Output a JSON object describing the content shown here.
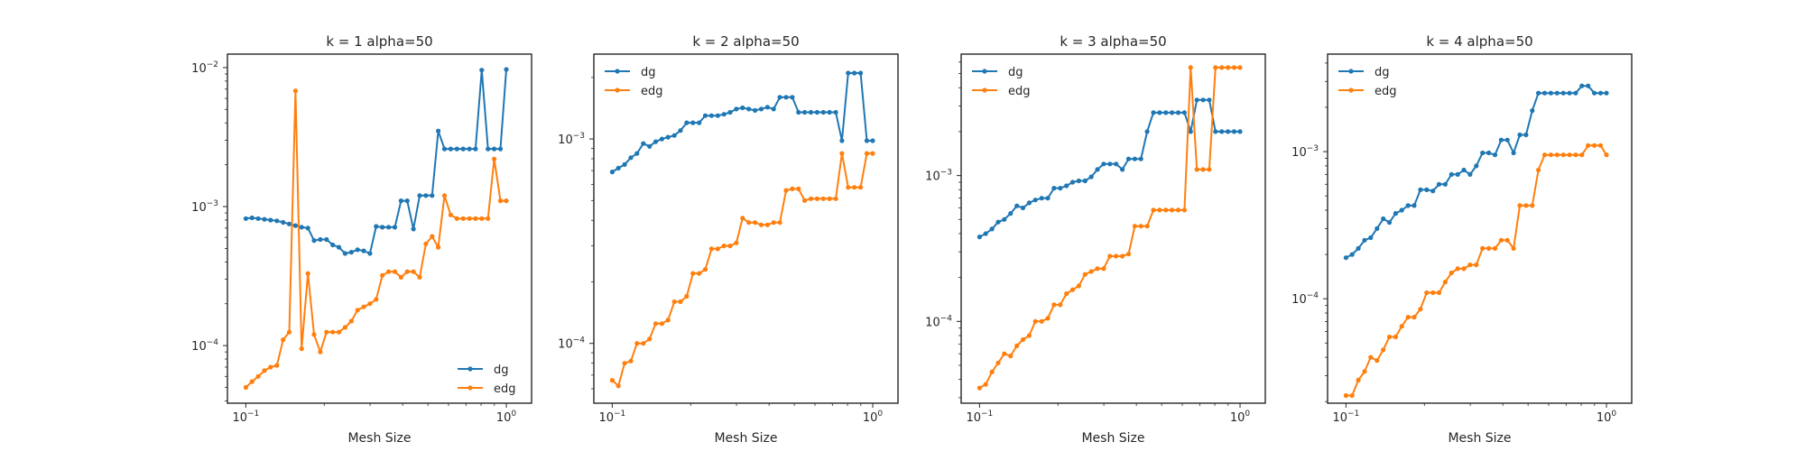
{
  "colors": {
    "dg": "#1f77b4",
    "edg": "#ff7f0e",
    "axes": "#262626",
    "background": "#ffffff"
  },
  "chart_data": [
    {
      "type": "line",
      "title": "k = 1 alpha=50",
      "xlabel": "Mesh Size",
      "xscale": "log",
      "yscale": "log",
      "xlim": [
        0.085,
        1.25
      ],
      "ylim": [
        3.85e-05,
        0.0125
      ],
      "xticks": [
        {
          "value": 0.1,
          "label": "10",
          "sup": "−1"
        },
        {
          "value": 1,
          "label": "10",
          "sup": "0"
        }
      ],
      "yticks": [
        {
          "value": 0.0001,
          "label": "10",
          "sup": "−4"
        },
        {
          "value": 0.001,
          "label": "10",
          "sup": "−3"
        },
        {
          "value": 0.01,
          "label": "10",
          "sup": "−2"
        }
      ],
      "grid": false,
      "legend": "lower-right",
      "series": [
        {
          "name": "dg",
          "color": "#1f77b4",
          "x": [
            0.1,
            0.1056,
            0.1116,
            0.1179,
            0.1245,
            0.1316,
            0.139,
            0.1468,
            0.1551,
            0.1638,
            0.1731,
            0.1828,
            0.1931,
            0.2041,
            0.2156,
            0.2277,
            0.2406,
            0.2541,
            0.2685,
            0.2836,
            0.2996,
            0.3165,
            0.3344,
            0.3533,
            0.3732,
            0.3943,
            0.4165,
            0.44,
            0.4648,
            0.4911,
            0.5188,
            0.5481,
            0.579,
            0.6117,
            0.6462,
            0.6827,
            0.7212,
            0.7619,
            0.8049,
            0.8503,
            0.8983,
            0.949,
            1.0
          ],
          "y": [
            0.00082,
            0.00083,
            0.00082,
            0.00081,
            0.0008,
            0.00079,
            0.00077,
            0.00075,
            0.00073,
            0.00071,
            0.0007,
            0.00057,
            0.00058,
            0.00058,
            0.00053,
            0.00051,
            0.00046,
            0.00047,
            0.00049,
            0.00048,
            0.00046,
            0.00072,
            0.00071,
            0.00071,
            0.00071,
            0.0011,
            0.0011,
            0.00069,
            0.0012,
            0.0012,
            0.0012,
            0.0035,
            0.0026,
            0.0026,
            0.0026,
            0.0026,
            0.0026,
            0.0026,
            0.0096,
            0.0026,
            0.0026,
            0.0026,
            0.0097
          ]
        },
        {
          "name": "edg",
          "color": "#ff7f0e",
          "x": [
            0.1,
            0.1056,
            0.1116,
            0.1179,
            0.1245,
            0.1316,
            0.139,
            0.1468,
            0.1551,
            0.1638,
            0.1731,
            0.1828,
            0.1931,
            0.2041,
            0.2156,
            0.2277,
            0.2406,
            0.2541,
            0.2685,
            0.2836,
            0.2996,
            0.3165,
            0.3344,
            0.3533,
            0.3732,
            0.3943,
            0.4165,
            0.44,
            0.4648,
            0.4911,
            0.5188,
            0.5481,
            0.579,
            0.6117,
            0.6462,
            0.6827,
            0.7212,
            0.7619,
            0.8049,
            0.8503,
            0.8983,
            0.949,
            1.0
          ],
          "y": [
            5e-05,
            5.5e-05,
            6e-05,
            6.6e-05,
            7e-05,
            7.2e-05,
            0.00011,
            0.000125,
            0.0068,
            9.5e-05,
            0.00033,
            0.00012,
            9e-05,
            0.000125,
            0.000125,
            0.000125,
            0.000135,
            0.00015,
            0.00018,
            0.00019,
            0.0002,
            0.000215,
            0.00032,
            0.00034,
            0.00034,
            0.00031,
            0.00034,
            0.00034,
            0.00031,
            0.00054,
            0.00061,
            0.00051,
            0.0012,
            0.00087,
            0.00082,
            0.00082,
            0.00082,
            0.00082,
            0.00082,
            0.00082,
            0.0022,
            0.0011,
            0.0011
          ]
        }
      ]
    },
    {
      "type": "line",
      "title": "k = 2 alpha=50",
      "xlabel": "Mesh Size",
      "xscale": "log",
      "yscale": "log",
      "xlim": [
        0.085,
        1.25
      ],
      "ylim": [
        5.1e-05,
        0.0026
      ],
      "xticks": [
        {
          "value": 0.1,
          "label": "10",
          "sup": "−1"
        },
        {
          "value": 1,
          "label": "10",
          "sup": "0"
        }
      ],
      "yticks": [
        {
          "value": 0.0001,
          "label": "10",
          "sup": "−4"
        },
        {
          "value": 0.001,
          "label": "10",
          "sup": "−3"
        }
      ],
      "grid": false,
      "legend": "upper-left",
      "series": [
        {
          "name": "dg",
          "color": "#1f77b4",
          "x": [
            0.1,
            0.1056,
            0.1116,
            0.1179,
            0.1245,
            0.1316,
            0.139,
            0.1468,
            0.1551,
            0.1638,
            0.1731,
            0.1828,
            0.1931,
            0.2041,
            0.2156,
            0.2277,
            0.2406,
            0.2541,
            0.2685,
            0.2836,
            0.2996,
            0.3165,
            0.3344,
            0.3533,
            0.3732,
            0.3943,
            0.4165,
            0.44,
            0.4648,
            0.4911,
            0.5188,
            0.5481,
            0.579,
            0.6117,
            0.6462,
            0.6827,
            0.7212,
            0.7619,
            0.8049,
            0.8503,
            0.8983,
            0.949,
            1.0
          ],
          "y": [
            0.00069,
            0.00072,
            0.00075,
            0.00081,
            0.00085,
            0.00095,
            0.00092,
            0.00097,
            0.001,
            0.00102,
            0.00104,
            0.0011,
            0.0012,
            0.0012,
            0.0012,
            0.0013,
            0.0013,
            0.0013,
            0.00132,
            0.00135,
            0.0014,
            0.00142,
            0.0014,
            0.00138,
            0.0014,
            0.00143,
            0.0014,
            0.0016,
            0.0016,
            0.0016,
            0.00135,
            0.00135,
            0.00135,
            0.00135,
            0.00135,
            0.00135,
            0.00135,
            0.00098,
            0.0021,
            0.0021,
            0.0021,
            0.00098,
            0.00098
          ]
        },
        {
          "name": "edg",
          "color": "#ff7f0e",
          "x": [
            0.1,
            0.1056,
            0.1116,
            0.1179,
            0.1245,
            0.1316,
            0.139,
            0.1468,
            0.1551,
            0.1638,
            0.1731,
            0.1828,
            0.1931,
            0.2041,
            0.2156,
            0.2277,
            0.2406,
            0.2541,
            0.2685,
            0.2836,
            0.2996,
            0.3165,
            0.3344,
            0.3533,
            0.3732,
            0.3943,
            0.4165,
            0.44,
            0.4648,
            0.4911,
            0.5188,
            0.5481,
            0.579,
            0.6117,
            0.6462,
            0.6827,
            0.7212,
            0.7619,
            0.8049,
            0.8503,
            0.8983,
            0.949,
            1.0
          ],
          "y": [
            6.6e-05,
            6.2e-05,
            8e-05,
            8.2e-05,
            0.0001,
            0.0001,
            0.000105,
            0.000125,
            0.000125,
            0.00013,
            0.00016,
            0.00016,
            0.00017,
            0.00022,
            0.00022,
            0.00023,
            0.00029,
            0.00029,
            0.0003,
            0.0003,
            0.00031,
            0.00041,
            0.00039,
            0.00039,
            0.00038,
            0.00038,
            0.00039,
            0.00039,
            0.00056,
            0.00057,
            0.00057,
            0.0005,
            0.00051,
            0.00051,
            0.00051,
            0.00051,
            0.00051,
            0.00085,
            0.00058,
            0.00058,
            0.00058,
            0.00085,
            0.00085
          ]
        }
      ]
    },
    {
      "type": "line",
      "title": "k = 3 alpha=50",
      "xlabel": "Mesh Size",
      "xscale": "log",
      "yscale": "log",
      "xlim": [
        0.085,
        1.25
      ],
      "ylim": [
        2.75e-05,
        0.0068
      ],
      "xticks": [
        {
          "value": 0.1,
          "label": "10",
          "sup": "−1"
        },
        {
          "value": 1,
          "label": "10",
          "sup": "0"
        }
      ],
      "yticks": [
        {
          "value": 0.0001,
          "label": "10",
          "sup": "−4"
        },
        {
          "value": 0.001,
          "label": "10",
          "sup": "−3"
        }
      ],
      "grid": false,
      "legend": "upper-left",
      "series": [
        {
          "name": "dg",
          "color": "#1f77b4",
          "x": [
            0.1,
            0.1056,
            0.1116,
            0.1179,
            0.1245,
            0.1316,
            0.139,
            0.1468,
            0.1551,
            0.1638,
            0.1731,
            0.1828,
            0.1931,
            0.2041,
            0.2156,
            0.2277,
            0.2406,
            0.2541,
            0.2685,
            0.2836,
            0.2996,
            0.3165,
            0.3344,
            0.3533,
            0.3732,
            0.3943,
            0.4165,
            0.44,
            0.4648,
            0.4911,
            0.5188,
            0.5481,
            0.579,
            0.6117,
            0.6462,
            0.6827,
            0.7212,
            0.7619,
            0.8049,
            0.8503,
            0.8983,
            0.949,
            1.0
          ],
          "y": [
            0.00038,
            0.0004,
            0.00043,
            0.00048,
            0.0005,
            0.00055,
            0.00062,
            0.0006,
            0.00065,
            0.00068,
            0.0007,
            0.0007,
            0.00082,
            0.00082,
            0.00085,
            0.0009,
            0.00092,
            0.00092,
            0.00098,
            0.0011,
            0.0012,
            0.0012,
            0.0012,
            0.0011,
            0.0013,
            0.0013,
            0.0013,
            0.002,
            0.0027,
            0.0027,
            0.0027,
            0.0027,
            0.0027,
            0.0027,
            0.002,
            0.0033,
            0.0033,
            0.0033,
            0.002,
            0.002,
            0.002,
            0.002,
            0.002
          ]
        },
        {
          "name": "edg",
          "color": "#ff7f0e",
          "x": [
            0.1,
            0.1056,
            0.1116,
            0.1179,
            0.1245,
            0.1316,
            0.139,
            0.1468,
            0.1551,
            0.1638,
            0.1731,
            0.1828,
            0.1931,
            0.2041,
            0.2156,
            0.2277,
            0.2406,
            0.2541,
            0.2685,
            0.2836,
            0.2996,
            0.3165,
            0.3344,
            0.3533,
            0.3732,
            0.3943,
            0.4165,
            0.44,
            0.4648,
            0.4911,
            0.5188,
            0.5481,
            0.579,
            0.6117,
            0.6462,
            0.6827,
            0.7212,
            0.7619,
            0.8049,
            0.8503,
            0.8983,
            0.949,
            1.0
          ],
          "y": [
            3.5e-05,
            3.7e-05,
            4.5e-05,
            5.2e-05,
            6e-05,
            5.8e-05,
            6.8e-05,
            7.5e-05,
            8e-05,
            0.0001,
            0.0001,
            0.000105,
            0.00013,
            0.00013,
            0.000155,
            0.000165,
            0.000175,
            0.00021,
            0.00022,
            0.00023,
            0.00023,
            0.00028,
            0.00028,
            0.00028,
            0.00029,
            0.00045,
            0.00045,
            0.00045,
            0.00058,
            0.00058,
            0.00058,
            0.00058,
            0.00058,
            0.00058,
            0.0055,
            0.0011,
            0.0011,
            0.0011,
            0.0055,
            0.0055,
            0.0055,
            0.0055,
            0.0055
          ]
        }
      ]
    },
    {
      "type": "line",
      "title": "k = 4 alpha=50",
      "xlabel": "Mesh Size",
      "xscale": "log",
      "yscale": "log",
      "xlim": [
        0.085,
        1.25
      ],
      "ylim": [
        1.95e-05,
        0.0046
      ],
      "xticks": [
        {
          "value": 0.1,
          "label": "10",
          "sup": "−1"
        },
        {
          "value": 1,
          "label": "10",
          "sup": "0"
        }
      ],
      "yticks": [
        {
          "value": 0.0001,
          "label": "10",
          "sup": "−4"
        },
        {
          "value": 0.001,
          "label": "10",
          "sup": "−3"
        }
      ],
      "grid": false,
      "legend": "upper-left",
      "series": [
        {
          "name": "dg",
          "color": "#1f77b4",
          "x": [
            0.1,
            0.1056,
            0.1116,
            0.1179,
            0.1245,
            0.1316,
            0.139,
            0.1468,
            0.1551,
            0.1638,
            0.1731,
            0.1828,
            0.1931,
            0.2041,
            0.2156,
            0.2277,
            0.2406,
            0.2541,
            0.2685,
            0.2836,
            0.2996,
            0.3165,
            0.3344,
            0.3533,
            0.3732,
            0.3943,
            0.4165,
            0.44,
            0.4648,
            0.4911,
            0.5188,
            0.5481,
            0.579,
            0.6117,
            0.6462,
            0.6827,
            0.7212,
            0.7619,
            0.8049,
            0.8503,
            0.8983,
            0.949,
            1.0
          ],
          "y": [
            0.00019,
            0.0002,
            0.00022,
            0.00025,
            0.00026,
            0.0003,
            0.00035,
            0.00033,
            0.00038,
            0.0004,
            0.00043,
            0.00043,
            0.00055,
            0.00055,
            0.00054,
            0.0006,
            0.0006,
            0.0007,
            0.0007,
            0.00075,
            0.0007,
            0.0008,
            0.00098,
            0.00098,
            0.00095,
            0.0012,
            0.0012,
            0.00098,
            0.0013,
            0.0013,
            0.0019,
            0.0025,
            0.0025,
            0.0025,
            0.0025,
            0.0025,
            0.0025,
            0.0025,
            0.0028,
            0.0028,
            0.0025,
            0.0025,
            0.0025
          ]
        },
        {
          "name": "edg",
          "color": "#ff7f0e",
          "x": [
            0.1,
            0.1056,
            0.1116,
            0.1179,
            0.1245,
            0.1316,
            0.139,
            0.1468,
            0.1551,
            0.1638,
            0.1731,
            0.1828,
            0.1931,
            0.2041,
            0.2156,
            0.2277,
            0.2406,
            0.2541,
            0.2685,
            0.2836,
            0.2996,
            0.3165,
            0.3344,
            0.3533,
            0.3732,
            0.3943,
            0.4165,
            0.44,
            0.4648,
            0.4911,
            0.5188,
            0.5481,
            0.579,
            0.6117,
            0.6462,
            0.6827,
            0.7212,
            0.7619,
            0.8049,
            0.8503,
            0.8983,
            0.949,
            1.0
          ],
          "y": [
            2.2e-05,
            2.2e-05,
            2.8e-05,
            3.2e-05,
            4e-05,
            3.8e-05,
            4.5e-05,
            5.5e-05,
            5.5e-05,
            6.5e-05,
            7.5e-05,
            7.5e-05,
            8.5e-05,
            0.00011,
            0.00011,
            0.00011,
            0.00013,
            0.00015,
            0.00016,
            0.00016,
            0.00017,
            0.00017,
            0.00022,
            0.00022,
            0.00022,
            0.00025,
            0.00025,
            0.00022,
            0.00043,
            0.00043,
            0.00043,
            0.00075,
            0.00095,
            0.00095,
            0.00095,
            0.00095,
            0.00095,
            0.00095,
            0.00095,
            0.0011,
            0.0011,
            0.0011,
            0.00095
          ]
        }
      ]
    }
  ]
}
